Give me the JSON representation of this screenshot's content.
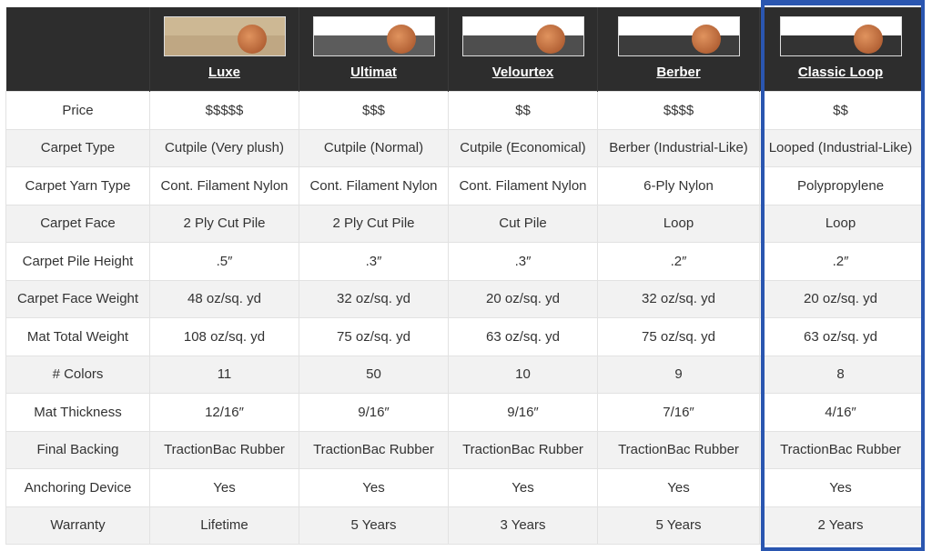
{
  "products": [
    {
      "name": "Luxe",
      "swatch": "#bfa783"
    },
    {
      "name": "Ultimat",
      "swatch": "#5c5c5c"
    },
    {
      "name": "Velourtex",
      "swatch": "#4e4e4e"
    },
    {
      "name": "Berber",
      "swatch": "#3c3c3c"
    },
    {
      "name": "Classic Loop",
      "swatch": "#333333"
    }
  ],
  "highlight_color": "#2a56b0",
  "rows": [
    {
      "label": "Price",
      "values": [
        "$$$$$",
        "$$$",
        "$$",
        "$$$$",
        "$$"
      ]
    },
    {
      "label": "Carpet Type",
      "values": [
        "Cutpile (Very plush)",
        "Cutpile (Normal)",
        "Cutpile (Economical)",
        "Berber (Industrial-Like)",
        "Looped (Industrial-Like)"
      ]
    },
    {
      "label": "Carpet Yarn Type",
      "values": [
        "Cont. Filament Nylon",
        "Cont. Filament Nylon",
        "Cont. Filament Nylon",
        "6-Ply Nylon",
        "Polypropylene"
      ]
    },
    {
      "label": "Carpet Face",
      "values": [
        "2 Ply Cut Pile",
        "2 Ply Cut Pile",
        "Cut Pile",
        "Loop",
        "Loop"
      ]
    },
    {
      "label": "Carpet Pile Height",
      "values": [
        ".5″",
        ".3″",
        ".3″",
        ".2″",
        ".2″"
      ]
    },
    {
      "label": "Carpet Face Weight",
      "values": [
        "48 oz/sq. yd",
        "32 oz/sq. yd",
        "20 oz/sq. yd",
        "32 oz/sq. yd",
        "20 oz/sq. yd"
      ]
    },
    {
      "label": "Mat Total Weight",
      "values": [
        "108 oz/sq. yd",
        "75 oz/sq. yd",
        "63 oz/sq. yd",
        "75 oz/sq. yd",
        "63 oz/sq. yd"
      ]
    },
    {
      "label": "# Colors",
      "values": [
        "11",
        "50",
        "10",
        "9",
        "8"
      ]
    },
    {
      "label": "Mat Thickness",
      "values": [
        "12/16″",
        "9/16″",
        "9/16″",
        "7/16″",
        "4/16″"
      ]
    },
    {
      "label": "Final Backing",
      "values": [
        "TractionBac Rubber",
        "TractionBac Rubber",
        "TractionBac Rubber",
        "TractionBac Rubber",
        "TractionBac Rubber"
      ]
    },
    {
      "label": "Anchoring Device",
      "values": [
        "Yes",
        "Yes",
        "Yes",
        "Yes",
        "Yes"
      ]
    },
    {
      "label": "Warranty",
      "values": [
        "Lifetime",
        "5 Years",
        "3 Years",
        "5 Years",
        "2 Years"
      ]
    }
  ]
}
